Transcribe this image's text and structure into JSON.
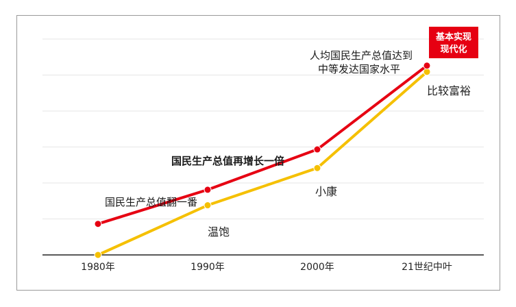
{
  "chart_data": {
    "type": "line",
    "categories": [
      "1980年",
      "1990年",
      "2000年",
      "21世纪中叶"
    ],
    "series": [
      {
        "color": "#e60012",
        "values": [
          1,
          2.1,
          3.4,
          6.1
        ]
      },
      {
        "color": "#f5c000",
        "values": [
          0,
          1.6,
          2.8,
          5.9
        ]
      }
    ],
    "ylim": [
      0,
      7
    ],
    "grid": true,
    "annotations": {
      "a1990_above": "国民生产总值翻一番",
      "a1990_below": "温饱",
      "a2000_above": "国民生产总值再增长一倍",
      "a2000_below": "小康",
      "a21_above_line1": "人均国民生产总值达到",
      "a21_above_line2": "中等发达国家水平",
      "a21_below": "比较富裕",
      "badge_line1": "基本实现",
      "badge_line2": "现代化"
    },
    "badge_color": "#e60012"
  }
}
